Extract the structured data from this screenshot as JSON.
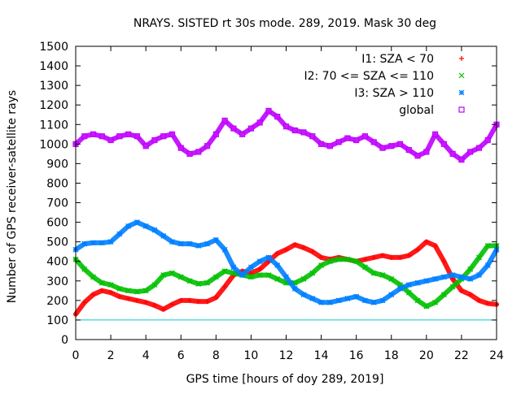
{
  "chart_data": {
    "type": "scatter",
    "title": "NRAYS. SISTED rt 30s mode. 289, 2019. Mask 30 deg",
    "xlabel": "GPS time [hours of doy 289, 2019]",
    "ylabel": "Number of GPS receiver-satellite rays",
    "xlim": [
      0,
      24
    ],
    "ylim": [
      0,
      1500
    ],
    "xticks": [
      0,
      2,
      4,
      6,
      8,
      10,
      12,
      14,
      16,
      18,
      20,
      22,
      24
    ],
    "yticks": [
      0,
      100,
      200,
      300,
      400,
      500,
      600,
      700,
      800,
      900,
      1000,
      1100,
      1200,
      1300,
      1400,
      1500
    ],
    "grid": false,
    "legend_position": "top-right",
    "reference_line": {
      "y": 100,
      "color": "#00c8c8"
    },
    "series": [
      {
        "name": "I1: SZA < 70",
        "marker": "plus",
        "color": "#ff0000",
        "x": [
          0,
          0.5,
          1,
          1.5,
          2,
          2.5,
          3,
          3.5,
          4,
          4.5,
          5,
          5.5,
          6,
          6.5,
          7,
          7.5,
          8,
          8.5,
          9,
          9.5,
          10,
          10.5,
          11,
          11.5,
          12,
          12.5,
          13,
          13.5,
          14,
          14.5,
          15,
          15.5,
          16,
          16.5,
          17,
          17.5,
          18,
          18.5,
          19,
          19.5,
          20,
          20.5,
          21,
          21.5,
          22,
          22.5,
          23,
          23.5,
          24
        ],
        "y": [
          130,
          190,
          230,
          250,
          240,
          220,
          210,
          200,
          190,
          175,
          155,
          180,
          200,
          200,
          195,
          195,
          215,
          270,
          330,
          350,
          340,
          360,
          400,
          440,
          460,
          485,
          470,
          450,
          420,
          410,
          420,
          410,
          400,
          410,
          420,
          430,
          420,
          420,
          430,
          460,
          500,
          480,
          400,
          310,
          250,
          230,
          200,
          185,
          180
        ]
      },
      {
        "name": "I2: 70 <= SZA <= 110",
        "marker": "cross",
        "color": "#00c000",
        "x": [
          0,
          0.5,
          1,
          1.5,
          2,
          2.5,
          3,
          3.5,
          4,
          4.5,
          5,
          5.5,
          6,
          6.5,
          7,
          7.5,
          8,
          8.5,
          9,
          9.5,
          10,
          10.5,
          11,
          11.5,
          12,
          12.5,
          13,
          13.5,
          14,
          14.5,
          15,
          15.5,
          16,
          16.5,
          17,
          17.5,
          18,
          18.5,
          19,
          19.5,
          20,
          20.5,
          21,
          21.5,
          22,
          22.5,
          23,
          23.5,
          24
        ],
        "y": [
          410,
          360,
          320,
          290,
          280,
          260,
          250,
          245,
          250,
          280,
          330,
          340,
          320,
          300,
          285,
          290,
          320,
          350,
          340,
          330,
          320,
          330,
          330,
          310,
          290,
          290,
          310,
          340,
          380,
          400,
          410,
          410,
          400,
          370,
          340,
          330,
          310,
          280,
          240,
          200,
          170,
          190,
          230,
          270,
          310,
          360,
          420,
          480,
          480
        ]
      },
      {
        "name": "I3: SZA > 110",
        "marker": "star",
        "color": "#0080ff",
        "x": [
          0,
          0.5,
          1,
          1.5,
          2,
          2.5,
          3,
          3.5,
          4,
          4.5,
          5,
          5.5,
          6,
          6.5,
          7,
          7.5,
          8,
          8.5,
          9,
          9.5,
          10,
          10.5,
          11,
          11.5,
          12,
          12.5,
          13,
          13.5,
          14,
          14.5,
          15,
          15.5,
          16,
          16.5,
          17,
          17.5,
          18,
          18.5,
          19,
          19.5,
          20,
          20.5,
          21,
          21.5,
          22,
          22.5,
          23,
          23.5,
          24
        ],
        "y": [
          460,
          490,
          495,
          495,
          500,
          540,
          580,
          600,
          580,
          560,
          530,
          500,
          490,
          490,
          480,
          490,
          510,
          460,
          370,
          330,
          370,
          400,
          420,
          380,
          320,
          260,
          230,
          210,
          190,
          190,
          200,
          210,
          220,
          200,
          190,
          200,
          230,
          260,
          280,
          290,
          300,
          310,
          320,
          330,
          320,
          310,
          330,
          380,
          460
        ]
      },
      {
        "name": "global",
        "marker": "square",
        "color": "#c000ff",
        "x": [
          0,
          0.5,
          1,
          1.5,
          2,
          2.5,
          3,
          3.5,
          4,
          4.5,
          5,
          5.5,
          6,
          6.5,
          7,
          7.5,
          8,
          8.5,
          9,
          9.5,
          10,
          10.5,
          11,
          11.5,
          12,
          12.5,
          13,
          13.5,
          14,
          14.5,
          15,
          15.5,
          16,
          16.5,
          17,
          17.5,
          18,
          18.5,
          19,
          19.5,
          20,
          20.5,
          21,
          21.5,
          22,
          22.5,
          23,
          23.5,
          24
        ],
        "y": [
          1000,
          1040,
          1050,
          1040,
          1020,
          1040,
          1050,
          1040,
          990,
          1020,
          1040,
          1050,
          980,
          950,
          960,
          990,
          1050,
          1120,
          1080,
          1050,
          1080,
          1110,
          1170,
          1140,
          1090,
          1070,
          1060,
          1040,
          1000,
          990,
          1010,
          1030,
          1020,
          1040,
          1010,
          980,
          990,
          1000,
          970,
          940,
          960,
          1050,
          1000,
          950,
          920,
          960,
          980,
          1020,
          1100
        ]
      }
    ]
  }
}
